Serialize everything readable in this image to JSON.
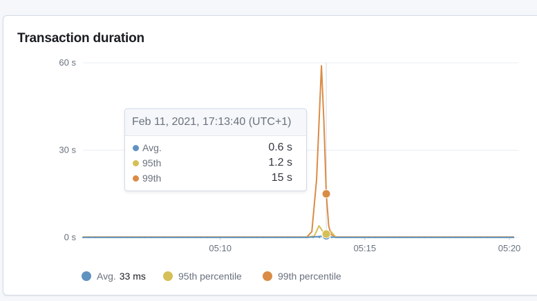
{
  "panel": {
    "title": "Transaction duration"
  },
  "chart_data": {
    "type": "line",
    "title": "Transaction duration",
    "y_unit": "s",
    "ylim": [
      0,
      60
    ],
    "y_ticks": [
      0,
      30,
      60
    ],
    "y_tick_labels": [
      "0 s",
      "30 s",
      "60 s"
    ],
    "x_ticks": [
      "05:10",
      "05:15",
      "05:20"
    ],
    "x_tick_values": [
      "05:10",
      "05:15",
      "05:20"
    ],
    "x_range": [
      "05:05:15",
      "05:20:10"
    ],
    "grid": true,
    "legend_position": "bottom-left",
    "series": [
      {
        "name": "Avg.",
        "color": "#6092c0",
        "x": [
          "05:05:15",
          "05:06:00",
          "05:07:00",
          "05:08:00",
          "05:09:00",
          "05:10:00",
          "05:11:00",
          "05:12:00",
          "05:13:00",
          "05:13:30",
          "05:13:40",
          "05:13:50",
          "05:14:00",
          "05:15:00",
          "05:16:00",
          "05:17:00",
          "05:18:00",
          "05:19:00",
          "05:20:10"
        ],
        "values": [
          0.03,
          0.03,
          0.03,
          0.03,
          0.03,
          0.03,
          0.03,
          0.03,
          0.03,
          0.4,
          0.6,
          0.2,
          0.03,
          0.03,
          0.03,
          0.03,
          0.03,
          0.03,
          0.03
        ]
      },
      {
        "name": "95th percentile",
        "color": "#d6bf57",
        "x": [
          "05:05:15",
          "05:07:00",
          "05:09:00",
          "05:11:00",
          "05:13:00",
          "05:13:15",
          "05:13:25",
          "05:13:35",
          "05:13:40",
          "05:13:50",
          "05:14:00",
          "05:15:00",
          "05:17:00",
          "05:19:00",
          "05:20:10"
        ],
        "values": [
          0.1,
          0.1,
          0.1,
          0.1,
          0.1,
          0.5,
          4,
          1.5,
          1.2,
          2,
          0.1,
          0.1,
          0.1,
          0.1,
          0.1
        ]
      },
      {
        "name": "99th percentile",
        "color": "#da8b45",
        "x": [
          "05:05:15",
          "05:07:00",
          "05:09:00",
          "05:11:00",
          "05:13:00",
          "05:13:10",
          "05:13:20",
          "05:13:30",
          "05:13:35",
          "05:13:40",
          "05:13:45",
          "05:13:50",
          "05:14:00",
          "05:15:00",
          "05:17:00",
          "05:19:00",
          "05:20:10"
        ],
        "values": [
          0.2,
          0.2,
          0.2,
          0.2,
          0.2,
          2,
          20,
          59,
          40,
          15,
          4,
          1,
          0.2,
          0.2,
          0.2,
          0.2,
          0.2
        ]
      }
    ]
  },
  "tooltip": {
    "header": "Feb 11, 2021, 17:13:40 (UTC+1)",
    "cursor_time": "05:13:40",
    "rows": [
      {
        "label": "Avg.",
        "value": "0.6 s",
        "color": "#6092c0",
        "numeric": 0.6
      },
      {
        "label": "95th",
        "value": "1.2 s",
        "color": "#d6bf57",
        "numeric": 1.2
      },
      {
        "label": "99th",
        "value": "15 s",
        "color": "#da8b45",
        "numeric": 15
      }
    ]
  },
  "legend": {
    "items": [
      {
        "label": "Avg.",
        "value": "33 ms",
        "color": "#6092c0"
      },
      {
        "label": "95th percentile",
        "value": "",
        "color": "#d6bf57"
      },
      {
        "label": "99th percentile",
        "value": "",
        "color": "#da8b45"
      }
    ]
  }
}
